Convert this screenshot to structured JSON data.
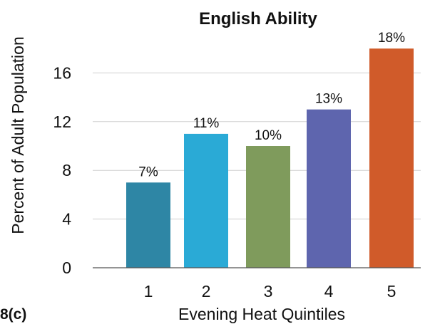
{
  "chart_data": {
    "type": "bar",
    "title": "English Ability",
    "panel_label": "8(c)",
    "xlabel": "Evening Heat Quintiles",
    "ylabel": "Percent of Adult Population",
    "categories": [
      "1",
      "2",
      "3",
      "4",
      "5"
    ],
    "values": [
      7,
      11,
      10,
      13,
      18
    ],
    "data_labels": [
      "7%",
      "11%",
      "10%",
      "13%",
      "18%"
    ],
    "colors": [
      "#2e86a5",
      "#2aaad6",
      "#7f9b5c",
      "#5e65ae",
      "#d05b2a"
    ],
    "yticks": [
      0,
      4,
      8,
      12,
      16
    ],
    "ylim": [
      0,
      18
    ],
    "grid": true,
    "legend": "none"
  }
}
